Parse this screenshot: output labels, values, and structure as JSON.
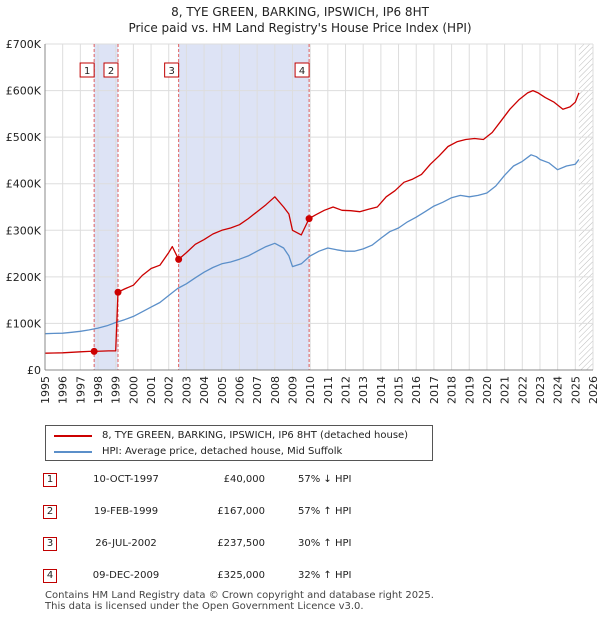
{
  "chart_data": {
    "type": "line",
    "title": "8, TYE GREEN, BARKING, IPSWICH, IP6 8HT",
    "subtitle": "Price paid vs. HM Land Registry's House Price Index (HPI)",
    "xlim": [
      1995.0,
      2026.0
    ],
    "ylim": [
      0,
      700000
    ],
    "y_ticks": [
      {
        "value": 0,
        "label": "£0"
      },
      {
        "value": 100000,
        "label": "£100K"
      },
      {
        "value": 200000,
        "label": "£200K"
      },
      {
        "value": 300000,
        "label": "£300K"
      },
      {
        "value": 400000,
        "label": "£400K"
      },
      {
        "value": 500000,
        "label": "£500K"
      },
      {
        "value": 600000,
        "label": "£600K"
      },
      {
        "value": 700000,
        "label": "£700K"
      }
    ],
    "x_ticks": [
      "1995",
      "1996",
      "1997",
      "1998",
      "1999",
      "2000",
      "2001",
      "2002",
      "2003",
      "2004",
      "2005",
      "2006",
      "2007",
      "2008",
      "2009",
      "2010",
      "2011",
      "2012",
      "2013",
      "2014",
      "2015",
      "2016",
      "2017",
      "2018",
      "2019",
      "2020",
      "2021",
      "2022",
      "2023",
      "2024",
      "2025",
      "2026"
    ],
    "grid": true,
    "series": [
      {
        "name": "8, TYE GREEN, BARKING, IPSWICH, IP6 8HT (detached house)",
        "color": "#cc0000",
        "x": [
          1995.0,
          1995.5,
          1996.0,
          1996.5,
          1997.0,
          1997.5,
          1997.78,
          1998.2,
          1998.6,
          1999.0,
          1999.13,
          1999.5,
          2000.0,
          2000.5,
          2001.0,
          2001.5,
          2002.0,
          2002.2,
          2002.56,
          2003.0,
          2003.5,
          2004.0,
          2004.5,
          2005.0,
          2005.5,
          2006.0,
          2006.5,
          2007.0,
          2007.5,
          2008.0,
          2008.5,
          2008.8,
          2009.0,
          2009.5,
          2009.94,
          2010.3,
          2010.8,
          2011.3,
          2011.8,
          2012.3,
          2012.8,
          2013.3,
          2013.8,
          2014.3,
          2014.8,
          2015.3,
          2015.8,
          2016.3,
          2016.8,
          2017.3,
          2017.8,
          2018.3,
          2018.8,
          2019.3,
          2019.8,
          2020.3,
          2020.8,
          2021.3,
          2021.8,
          2022.3,
          2022.6,
          2022.9,
          2023.3,
          2023.8,
          2024.3,
          2024.7,
          2025.0,
          2025.2
        ],
        "values": [
          36000,
          36500,
          37000,
          38000,
          39000,
          40000,
          40000,
          40500,
          41000,
          41000,
          167000,
          174000,
          182000,
          203000,
          218000,
          225000,
          252000,
          265000,
          237500,
          252000,
          270000,
          280000,
          292000,
          300000,
          305000,
          312000,
          325000,
          340000,
          355000,
          372000,
          350000,
          335000,
          300000,
          290000,
          325000,
          333000,
          343000,
          350000,
          343000,
          342000,
          340000,
          345000,
          350000,
          372000,
          385000,
          403000,
          410000,
          420000,
          442000,
          460000,
          480000,
          490000,
          495000,
          497000,
          495000,
          510000,
          535000,
          560000,
          580000,
          595000,
          600000,
          595000,
          585000,
          575000,
          560000,
          565000,
          575000,
          595000
        ]
      },
      {
        "name": "HPI: Average price, detached house, Mid Suffolk",
        "color": "#5b8fc9",
        "x": [
          1995.0,
          1995.5,
          1996.0,
          1996.5,
          1997.0,
          1997.5,
          1998.0,
          1998.5,
          1999.0,
          1999.5,
          2000.0,
          2000.5,
          2001.0,
          2001.5,
          2002.0,
          2002.5,
          2003.0,
          2003.5,
          2004.0,
          2004.5,
          2005.0,
          2005.5,
          2006.0,
          2006.5,
          2007.0,
          2007.5,
          2008.0,
          2008.5,
          2008.8,
          2009.0,
          2009.5,
          2010.0,
          2010.5,
          2011.0,
          2011.5,
          2012.0,
          2012.5,
          2013.0,
          2013.5,
          2014.0,
          2014.5,
          2015.0,
          2015.5,
          2016.0,
          2016.5,
          2017.0,
          2017.5,
          2018.0,
          2018.5,
          2019.0,
          2019.5,
          2020.0,
          2020.5,
          2021.0,
          2021.5,
          2022.0,
          2022.5,
          2022.8,
          2023.0,
          2023.5,
          2024.0,
          2024.5,
          2025.0,
          2025.2
        ],
        "values": [
          78000,
          78500,
          79000,
          81000,
          83000,
          86000,
          90000,
          95000,
          102000,
          108000,
          115000,
          125000,
          135000,
          145000,
          160000,
          175000,
          185000,
          198000,
          210000,
          220000,
          228000,
          232000,
          238000,
          245000,
          255000,
          265000,
          272000,
          262000,
          245000,
          222000,
          228000,
          245000,
          255000,
          262000,
          258000,
          255000,
          255000,
          260000,
          268000,
          283000,
          297000,
          305000,
          318000,
          328000,
          340000,
          352000,
          360000,
          370000,
          375000,
          372000,
          375000,
          380000,
          395000,
          418000,
          438000,
          448000,
          462000,
          458000,
          452000,
          445000,
          430000,
          438000,
          442000,
          452000
        ]
      }
    ],
    "sales": [
      {
        "id": "1",
        "x": 1997.78,
        "price": 40000
      },
      {
        "id": "2",
        "x": 1999.13,
        "price": 167000
      },
      {
        "id": "3",
        "x": 2002.56,
        "price": 237500
      },
      {
        "id": "4",
        "x": 2009.94,
        "price": 325000
      }
    ],
    "shaded_ranges": [
      [
        1997.78,
        1999.13
      ],
      [
        2002.56,
        2009.94
      ]
    ],
    "future_from": 2025.2
  },
  "table": [
    {
      "num": "1",
      "date": "10-OCT-1997",
      "price": "£40,000",
      "hpi": "57% ↓ HPI"
    },
    {
      "num": "2",
      "date": "19-FEB-1999",
      "price": "£167,000",
      "hpi": "57% ↑ HPI"
    },
    {
      "num": "3",
      "date": "26-JUL-2002",
      "price": "£237,500",
      "hpi": "30% ↑ HPI"
    },
    {
      "num": "4",
      "date": "09-DEC-2009",
      "price": "£325,000",
      "hpi": "32% ↑ HPI"
    }
  ],
  "footer": {
    "line1": "Contains HM Land Registry data © Crown copyright and database right 2025.",
    "line2": "This data is licensed under the Open Government Licence v3.0."
  }
}
